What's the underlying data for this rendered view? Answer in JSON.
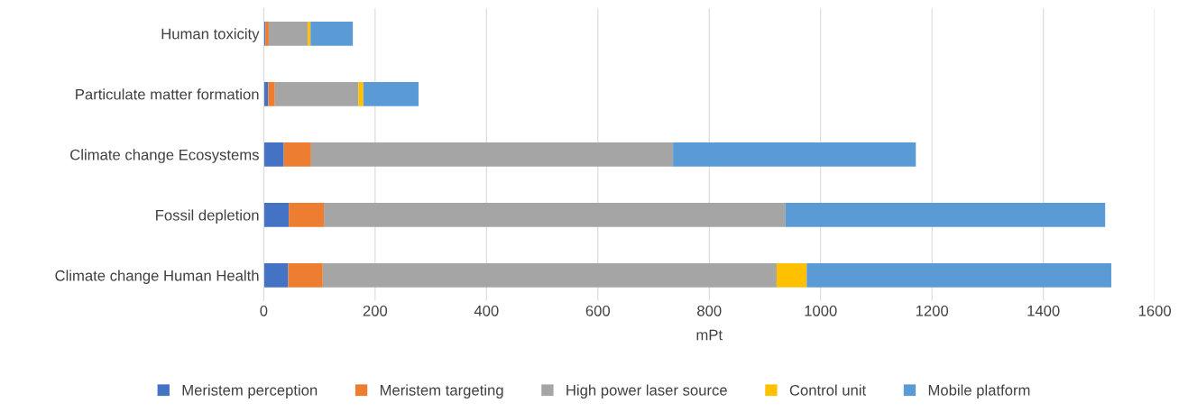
{
  "chart_data": {
    "type": "bar",
    "orientation": "horizontal",
    "stacked": true,
    "xlabel": "mPt",
    "categories": [
      "Human toxicity",
      "Particulate matter formation",
      "Climate change Ecosystems",
      "Fossil depletion",
      "Climate change Human Health"
    ],
    "series": [
      {
        "name": "Meristem perception",
        "color": "#4472c4",
        "values": [
          3,
          8,
          36,
          45,
          44
        ]
      },
      {
        "name": "Meristem targeting",
        "color": "#ed7d31",
        "values": [
          6,
          12,
          49,
          63,
          62
        ]
      },
      {
        "name": "High power laser source",
        "color": "#a5a5a5",
        "values": [
          70,
          150,
          650,
          829,
          815
        ]
      },
      {
        "name": "Control unit",
        "color": "#ffc000",
        "values": [
          5,
          9,
          0,
          0,
          54
        ]
      },
      {
        "name": "Mobile platform",
        "color": "#5b9bd5",
        "values": [
          76,
          99,
          436,
          574,
          547
        ]
      }
    ],
    "xlim": [
      0,
      1600
    ],
    "xticks": [
      0,
      200,
      400,
      600,
      800,
      1000,
      1200,
      1400,
      1600
    ],
    "grid": "x",
    "legend": "bottom"
  }
}
